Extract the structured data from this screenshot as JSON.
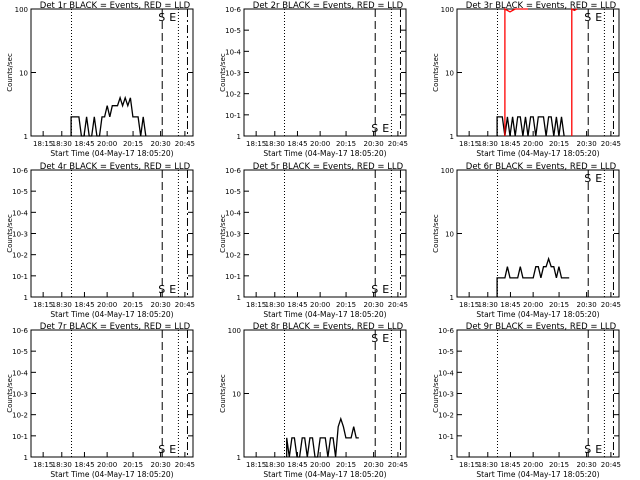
{
  "chart_data": [
    {
      "type": "line",
      "title": "Det 1r BLACK = Events, RED = LLD",
      "xlabel": "Start Time (04-May-17 18:05:20)",
      "ylabel": "Counts/sec",
      "yscale": "log",
      "ylim": [
        1,
        100
      ],
      "yticks": [
        "1",
        "10",
        "100"
      ],
      "xticks": [
        "18:15",
        "18:30",
        "18:45",
        "20:00",
        "20:15",
        "20:30",
        "20:45"
      ],
      "markers": [
        "S",
        "E"
      ],
      "series": [
        {
          "color": "#000000",
          "values": [
            0,
            0,
            0,
            2,
            2,
            2,
            2,
            1,
            1,
            2,
            1,
            1,
            2,
            1,
            1,
            2,
            2,
            3,
            2,
            3,
            3,
            3,
            4,
            3,
            4,
            3,
            4,
            2,
            2,
            2,
            1,
            2,
            1,
            0,
            0,
            0,
            0,
            0,
            0,
            0
          ]
        }
      ]
    },
    {
      "type": "line",
      "title": "Det 2r BLACK = Events, RED = LLD",
      "xlabel": "Start Time (04-May-17 18:05:20)",
      "ylabel": "Counts/sec",
      "yscale": "log",
      "ylim": [
        1,
        1e-06
      ],
      "yticks": [
        "1",
        "10-1",
        "10-2",
        "10-3",
        "10-4",
        "10-5",
        "10-6"
      ],
      "xticks": [
        "18:15",
        "18:30",
        "18:45",
        "20:00",
        "20:15",
        "20:30",
        "20:45"
      ],
      "markers": [
        "S",
        "E"
      ],
      "series": []
    },
    {
      "type": "line",
      "title": "Det 3r BLACK = Events, RED = LLD",
      "xlabel": "Start Time (04-May-17 18:05:20)",
      "ylabel": "Counts/sec",
      "yscale": "log",
      "ylim": [
        1,
        100
      ],
      "yticks": [
        "1",
        "10",
        "100"
      ],
      "xticks": [
        "18:15",
        "18:30",
        "18:45",
        "20:00",
        "20:15",
        "20:30",
        "20:45"
      ],
      "markers": [
        "S",
        "E"
      ],
      "series": [
        {
          "color": "#000000",
          "values": [
            0,
            0,
            0,
            2,
            2,
            2,
            1,
            2,
            1,
            2,
            1,
            2,
            2,
            1,
            2,
            1,
            2,
            2,
            1,
            2,
            2,
            2,
            1,
            2,
            2,
            1,
            2,
            1,
            2,
            1,
            0,
            0,
            0,
            0,
            0,
            0,
            0,
            0,
            0,
            0
          ]
        },
        {
          "color": "#ff0000",
          "values": [
            0,
            0,
            0,
            0,
            0,
            0,
            100,
            95,
            90,
            95,
            100,
            100,
            100,
            100,
            100,
            100,
            0,
            0,
            0,
            0,
            0,
            0,
            0,
            0,
            0,
            0,
            0,
            0,
            0,
            0,
            0,
            0,
            100,
            95,
            100,
            0,
            0,
            0,
            0,
            0
          ]
        }
      ]
    },
    {
      "type": "line",
      "title": "Det 4r BLACK = Events, RED = LLD",
      "xlabel": "Start Time (04-May-17 18:05:20)",
      "ylabel": "Counts/sec",
      "yscale": "log",
      "ylim": [
        1,
        1e-06
      ],
      "yticks": [
        "1",
        "10-1",
        "10-2",
        "10-3",
        "10-4",
        "10-5",
        "10-6"
      ],
      "xticks": [
        "18:15",
        "18:30",
        "18:45",
        "20:00",
        "20:15",
        "20:30",
        "20:45"
      ],
      "markers": [
        "S",
        "E"
      ],
      "series": []
    },
    {
      "type": "line",
      "title": "Det 5r BLACK = Events, RED = LLD",
      "xlabel": "Start Time (04-May-17 18:05:20)",
      "ylabel": "Counts/sec",
      "yscale": "log",
      "ylim": [
        1,
        1e-06
      ],
      "yticks": [
        "1",
        "10-1",
        "10-2",
        "10-3",
        "10-4",
        "10-5",
        "10-6"
      ],
      "xticks": [
        "18:15",
        "18:30",
        "18:45",
        "20:00",
        "20:15",
        "20:30",
        "20:45"
      ],
      "markers": [
        "S",
        "E"
      ],
      "series": []
    },
    {
      "type": "line",
      "title": "Det 6r BLACK = Events, RED = LLD",
      "xlabel": "Start Time (04-May-17 18:05:20)",
      "ylabel": "Counts/sec",
      "yscale": "log",
      "ylim": [
        1,
        100
      ],
      "yticks": [
        "1",
        "10",
        "100"
      ],
      "xticks": [
        "18:15",
        "18:30",
        "18:45",
        "20:00",
        "20:15",
        "20:30",
        "20:45"
      ],
      "markers": [
        "S",
        "E"
      ],
      "series": [
        {
          "color": "#000000",
          "values": [
            0,
            0,
            0,
            2,
            2,
            2,
            2,
            3,
            2,
            2,
            2,
            2,
            3,
            2,
            2,
            2,
            2,
            2,
            3,
            3,
            2,
            3,
            3,
            4,
            3,
            3,
            2,
            3,
            2,
            2,
            2,
            2,
            0,
            0,
            0,
            0,
            0,
            0,
            0,
            0
          ]
        }
      ]
    },
    {
      "type": "line",
      "title": "Det 7r BLACK = Events, RED = LLD",
      "xlabel": "Start Time (04-May-17 18:05:20)",
      "ylabel": "Counts/sec",
      "yscale": "log",
      "ylim": [
        1,
        1e-06
      ],
      "yticks": [
        "1",
        "10-1",
        "10-2",
        "10-3",
        "10-4",
        "10-5",
        "10-6"
      ],
      "xticks": [
        "18:15",
        "18:30",
        "18:45",
        "20:00",
        "20:15",
        "20:30",
        "20:45"
      ],
      "markers": [
        "S",
        "E"
      ],
      "series": []
    },
    {
      "type": "line",
      "title": "Det 8r BLACK = Events, RED = LLD",
      "xlabel": "Start Time (04-May-17 18:05:20)",
      "ylabel": "Counts/sec",
      "yscale": "log",
      "ylim": [
        1,
        100
      ],
      "yticks": [
        "1",
        "10",
        "100"
      ],
      "xticks": [
        "18:15",
        "18:30",
        "18:45",
        "20:00",
        "20:15",
        "20:30",
        "20:45"
      ],
      "markers": [
        "S",
        "E"
      ],
      "series": [
        {
          "color": "#000000",
          "values": [
            0,
            0,
            0,
            0,
            2,
            1,
            2,
            2,
            1,
            1,
            2,
            2,
            1,
            2,
            2,
            1,
            1,
            2,
            2,
            2,
            1,
            2,
            2,
            1,
            3,
            4,
            3,
            2,
            2,
            2,
            3,
            2,
            2,
            0,
            0,
            0,
            0,
            0,
            0,
            0
          ]
        }
      ]
    },
    {
      "type": "line",
      "title": "Det 9r BLACK = Events, RED = LLD",
      "xlabel": "Start Time (04-May-17 18:05:20)",
      "ylabel": "Counts/sec",
      "yscale": "log",
      "ylim": [
        1,
        1e-06
      ],
      "yticks": [
        "1",
        "10-1",
        "10-2",
        "10-3",
        "10-4",
        "10-5",
        "10-6"
      ],
      "xticks": [
        "18:15",
        "18:30",
        "18:45",
        "20:00",
        "20:15",
        "20:30",
        "20:45"
      ],
      "markers": [
        "S",
        "E"
      ],
      "series": []
    }
  ]
}
